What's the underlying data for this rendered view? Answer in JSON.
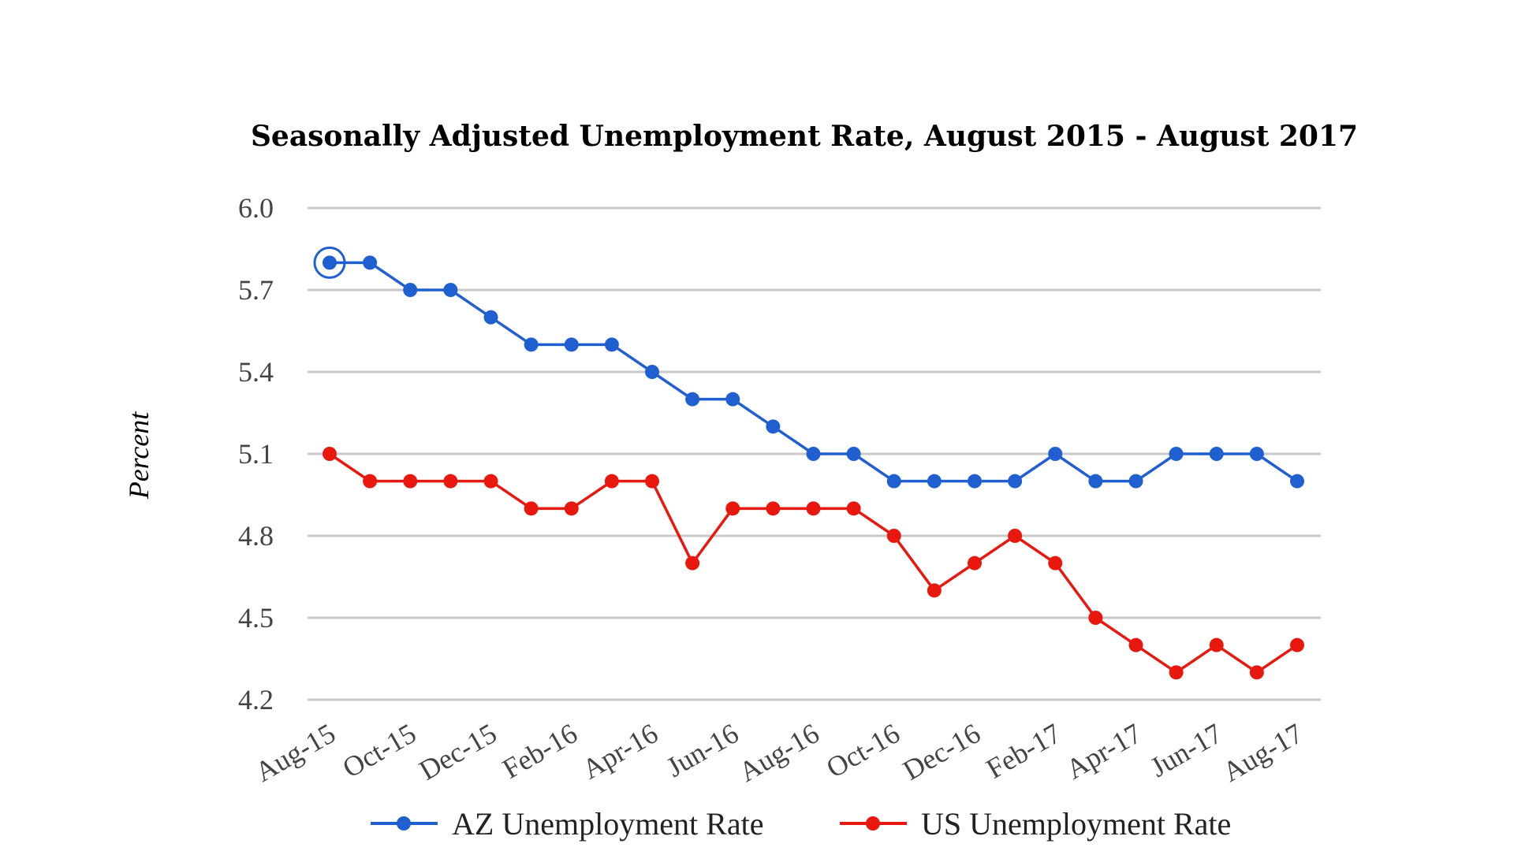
{
  "chart_data": {
    "type": "line",
    "title": "Seasonally Adjusted Unemployment Rate, August 2015 - August 2017",
    "xlabel": "",
    "ylabel": "Percent",
    "ylim": [
      4.2,
      6.0
    ],
    "yticks": [
      "6.0",
      "5.7",
      "5.4",
      "5.1",
      "4.8",
      "4.5",
      "4.2"
    ],
    "ytick_values": [
      6.0,
      5.7,
      5.4,
      5.1,
      4.8,
      4.5,
      4.2
    ],
    "x": [
      "Aug-15",
      "Sep-15",
      "Oct-15",
      "Nov-15",
      "Dec-15",
      "Jan-16",
      "Feb-16",
      "Mar-16",
      "Apr-16",
      "May-16",
      "Jun-16",
      "Jul-16",
      "Aug-16",
      "Sep-16",
      "Oct-16",
      "Nov-16",
      "Dec-16",
      "Jan-17",
      "Feb-17",
      "Mar-17",
      "Apr-17",
      "May-17",
      "Jun-17",
      "Jul-17",
      "Aug-17"
    ],
    "xtick_labels": [
      "Aug-15",
      "Oct-15",
      "Dec-15",
      "Feb-16",
      "Apr-16",
      "Jun-16",
      "Aug-16",
      "Oct-16",
      "Dec-16",
      "Feb-17",
      "Apr-17",
      "Jun-17",
      "Aug-17"
    ],
    "grid": true,
    "legend_position": "bottom",
    "series": [
      {
        "name": "AZ Unemployment Rate",
        "color": "#1f5fd0",
        "values": [
          5.8,
          5.8,
          5.7,
          5.7,
          5.6,
          5.5,
          5.5,
          5.5,
          5.4,
          5.3,
          5.3,
          5.2,
          5.1,
          5.1,
          5.0,
          5.0,
          5.0,
          5.0,
          5.1,
          5.0,
          5.0,
          5.1,
          5.1,
          5.1,
          5.0
        ]
      },
      {
        "name": "US Unemployment Rate",
        "color": "#e8180e",
        "values": [
          5.1,
          5.0,
          5.0,
          5.0,
          5.0,
          4.9,
          4.9,
          5.0,
          5.0,
          4.7,
          4.9,
          4.9,
          4.9,
          4.9,
          4.8,
          4.6,
          4.7,
          4.8,
          4.7,
          4.5,
          4.4,
          4.3,
          4.4,
          4.3,
          4.4
        ]
      }
    ]
  }
}
